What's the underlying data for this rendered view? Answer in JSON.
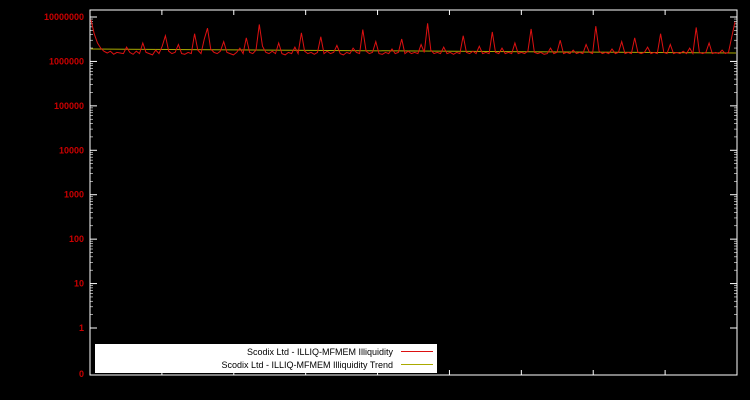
{
  "chart": {
    "background": "#000000",
    "frame_color": "#ffffff",
    "tick_label_color": "#cc0000"
  },
  "chart_data": {
    "type": "line",
    "title": "",
    "xlabel": "",
    "ylabel": "",
    "yscale": "log",
    "ylim": [
      1,
      10000000
    ],
    "grid": false,
    "legend_position": "bottom-inside",
    "ytick_labels": [
      "10000000",
      "1000000",
      "100000",
      "10000",
      "1000",
      "100",
      "10",
      "1",
      "0"
    ],
    "series": [
      {
        "name": "Scodix Ltd - ILLIQ-MFMEM Illiquidity",
        "color": "#dd1111",
        "values": [
          8600000,
          4200000,
          2600000,
          2000000,
          1700000,
          1550000,
          1700000,
          1450000,
          1600000,
          1550000,
          1500000,
          2100000,
          1600000,
          1450000,
          1700000,
          1500000,
          2600000,
          1600000,
          1500000,
          1400000,
          1800000,
          1500000,
          2200000,
          3800000,
          1700000,
          1500000,
          1600000,
          2400000,
          1500000,
          1450000,
          1600000,
          1500000,
          4200000,
          1800000,
          1500000,
          3200000,
          5600000,
          1900000,
          1600000,
          1500000,
          1700000,
          2800000,
          1600000,
          1500000,
          1400000,
          1600000,
          2000000,
          1500000,
          3400000,
          1600000,
          1500000,
          1800000,
          6800000,
          2200000,
          1600000,
          1500000,
          1700000,
          1500000,
          2600000,
          1500000,
          1400000,
          1600000,
          1500000,
          2100000,
          1500000,
          4400000,
          1700000,
          1500000,
          1600000,
          1450000,
          1600000,
          3600000,
          1500000,
          1700000,
          1500000,
          1600000,
          2300000,
          1500000,
          1400000,
          1600000,
          1500000,
          2000000,
          1600000,
          1500000,
          5200000,
          1700000,
          1500000,
          1600000,
          2800000,
          1500000,
          1450000,
          1600000,
          1500000,
          1900000,
          1500000,
          1600000,
          3200000,
          1500000,
          1700000,
          1500000,
          1600000,
          1500000,
          2400000,
          1600000,
          7200000,
          1800000,
          1500000,
          1600000,
          1500000,
          2100000,
          1500000,
          1600000,
          1450000,
          1600000,
          1500000,
          3800000,
          1600000,
          1500000,
          1700000,
          1500000,
          2200000,
          1500000,
          1600000,
          1500000,
          4600000,
          1600000,
          1500000,
          2000000,
          1500000,
          1600000,
          1500000,
          2600000,
          1500000,
          1600000,
          1500000,
          1700000,
          5400000,
          1600000,
          1500000,
          1600000,
          1450000,
          1500000,
          2000000,
          1500000,
          1600000,
          3000000,
          1500000,
          1600000,
          1500000,
          1800000,
          1500000,
          1600000,
          1500000,
          2400000,
          1600000,
          1500000,
          6200000,
          1700000,
          1500000,
          1600000,
          1500000,
          1900000,
          1500000,
          1600000,
          2800000,
          1500000,
          1600000,
          1500000,
          3400000,
          1600000,
          1500000,
          1600000,
          2100000,
          1500000,
          1600000,
          1500000,
          4200000,
          1600000,
          1500000,
          2400000,
          1500000,
          1600000,
          1500000,
          1700000,
          1500000,
          2000000,
          1500000,
          5800000,
          1600000,
          1500000,
          1600000,
          2600000,
          1500000,
          1600000,
          1500000,
          1800000,
          1500000,
          1600000,
          3600000,
          7800000
        ]
      },
      {
        "name": "Scodix Ltd - ILLIQ-MFMEM Illiquidity Trend",
        "color": "#aaaa00",
        "trend_start": 1900000,
        "trend_end": 1550000
      }
    ]
  },
  "legend": {
    "row1": "Scodix Ltd - ILLIQ-MFMEM Illiquidity",
    "row2": "Scodix Ltd - ILLIQ-MFMEM Illiquidity Trend"
  }
}
